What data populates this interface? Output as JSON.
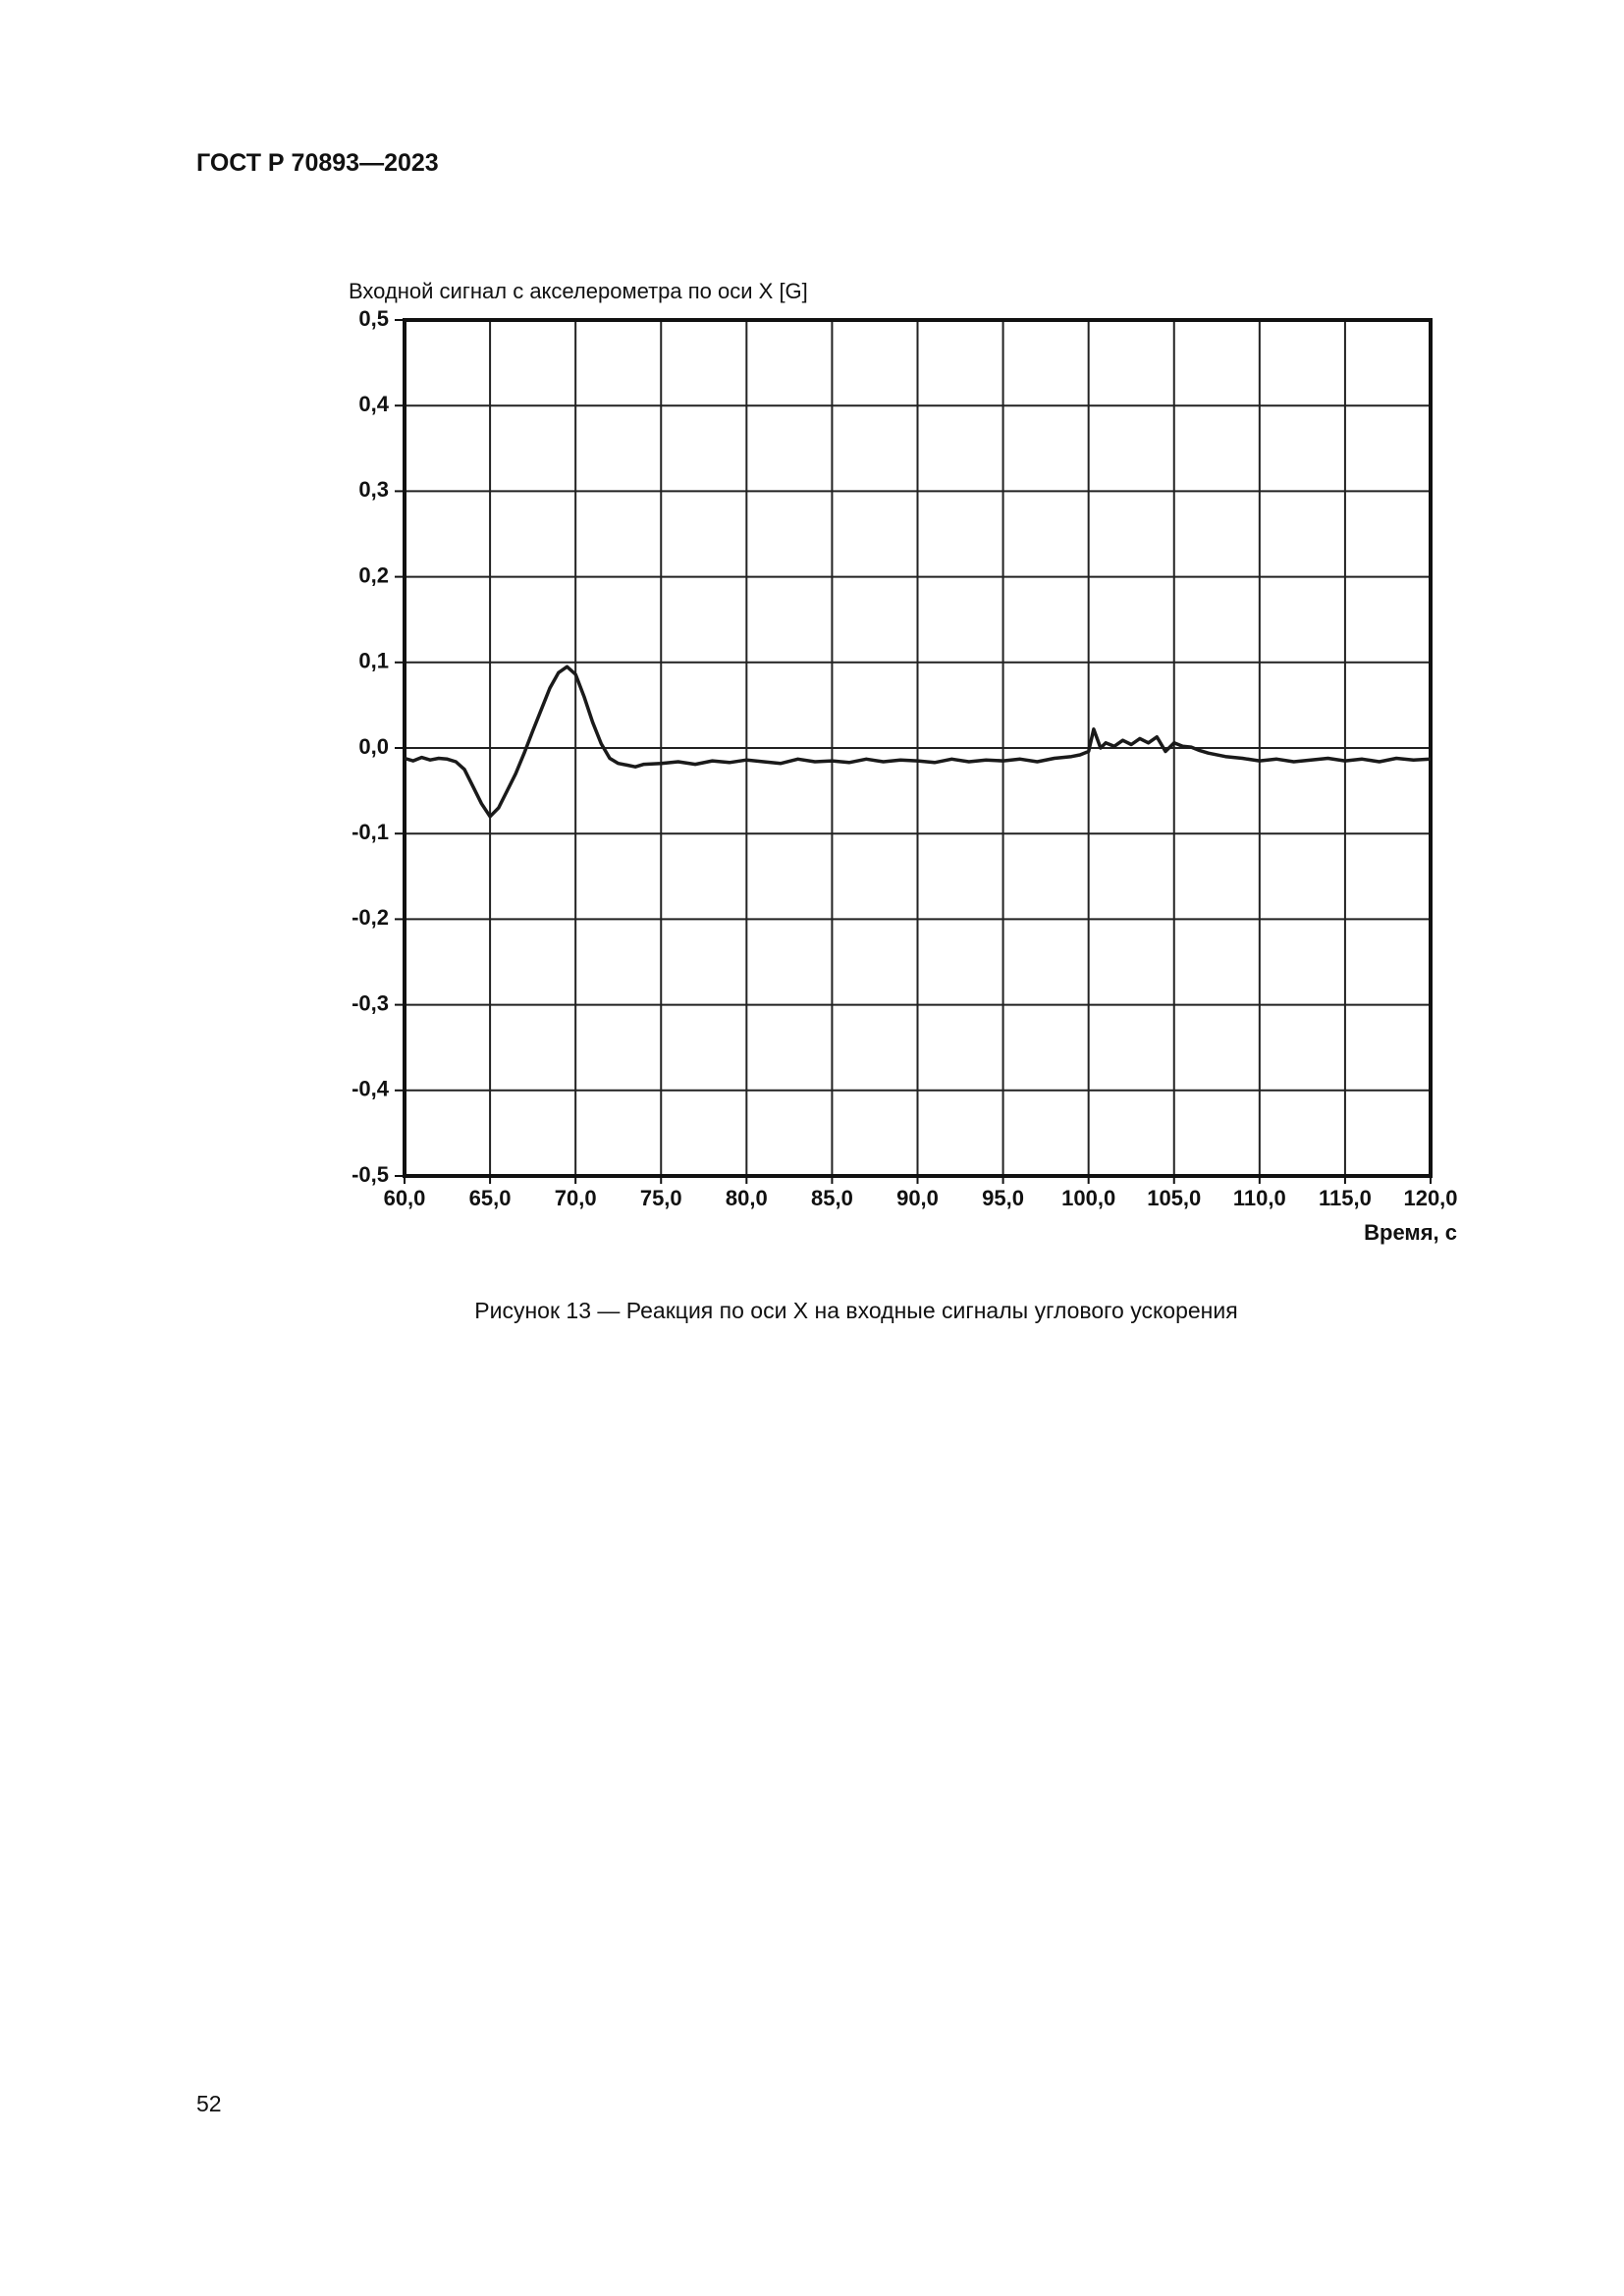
{
  "header": "ГОСТ Р 70893—2023",
  "chart_data": {
    "type": "line",
    "title": "Входной сигнал с акселерометра по оси X [G]",
    "x_label": "Время, с",
    "grid": true,
    "xlim": [
      60,
      120
    ],
    "ylim": [
      -0.5,
      0.5
    ],
    "xticks": [
      {
        "value": 60,
        "label": "60,0"
      },
      {
        "value": 65,
        "label": "65,0"
      },
      {
        "value": 70,
        "label": "70,0"
      },
      {
        "value": 75,
        "label": "75,0"
      },
      {
        "value": 80,
        "label": "80,0"
      },
      {
        "value": 85,
        "label": "85,0"
      },
      {
        "value": 90,
        "label": "90,0"
      },
      {
        "value": 95,
        "label": "95,0"
      },
      {
        "value": 100,
        "label": "100,0"
      },
      {
        "value": 105,
        "label": "105,0"
      },
      {
        "value": 110,
        "label": "110,0"
      },
      {
        "value": 115,
        "label": "115,0"
      },
      {
        "value": 120,
        "label": "120,0"
      }
    ],
    "yticks": [
      {
        "value": 0.5,
        "label": "0,5"
      },
      {
        "value": 0.4,
        "label": "0,4"
      },
      {
        "value": 0.3,
        "label": "0,3"
      },
      {
        "value": 0.2,
        "label": "0,2"
      },
      {
        "value": 0.1,
        "label": "0,1"
      },
      {
        "value": 0,
        "label": "0,0"
      },
      {
        "value": -0.1,
        "label": "-0,1"
      },
      {
        "value": -0.2,
        "label": "-0,2"
      },
      {
        "value": -0.3,
        "label": "-0,3"
      },
      {
        "value": -0.4,
        "label": "-0,4"
      },
      {
        "value": -0.5,
        "label": "-0,5"
      }
    ],
    "x": [
      60,
      60.5,
      61,
      61.5,
      62,
      62.5,
      63,
      63.5,
      64,
      64.5,
      65,
      65.5,
      66,
      66.5,
      67,
      67.5,
      68,
      68.5,
      69,
      69.5,
      70,
      70.5,
      71,
      71.5,
      72,
      72.5,
      73,
      73.5,
      74,
      75,
      76,
      77,
      78,
      79,
      80,
      81,
      82,
      83,
      84,
      85,
      86,
      87,
      88,
      89,
      90,
      91,
      92,
      93,
      94,
      95,
      96,
      97,
      98,
      99,
      99.5,
      100,
      100.3,
      100.7,
      101,
      101.5,
      102,
      102.5,
      103,
      103.5,
      104,
      104.5,
      105,
      105.5,
      106,
      106.5,
      107,
      108,
      109,
      110,
      111,
      112,
      113,
      114,
      115,
      116,
      117,
      118,
      119,
      120
    ],
    "series": [
      {
        "color": "#1a1a1a",
        "values": [
          -0.012,
          -0.015,
          -0.011,
          -0.014,
          -0.012,
          -0.013,
          -0.016,
          -0.025,
          -0.045,
          -0.065,
          -0.08,
          -0.07,
          -0.05,
          -0.03,
          -0.006,
          0.02,
          0.045,
          0.07,
          0.088,
          0.095,
          0.086,
          0.06,
          0.03,
          0.005,
          -0.012,
          -0.018,
          -0.02,
          -0.022,
          -0.019,
          -0.018,
          -0.016,
          -0.019,
          -0.015,
          -0.017,
          -0.014,
          -0.016,
          -0.018,
          -0.013,
          -0.016,
          -0.015,
          -0.017,
          -0.013,
          -0.016,
          -0.014,
          -0.015,
          -0.017,
          -0.013,
          -0.016,
          -0.014,
          -0.015,
          -0.013,
          -0.016,
          -0.012,
          -0.01,
          -0.008,
          -0.004,
          0.022,
          0.0,
          0.006,
          0.002,
          0.009,
          0.004,
          0.011,
          0.006,
          0.013,
          -0.004,
          0.006,
          0.002,
          0.001,
          -0.003,
          -0.006,
          -0.01,
          -0.012,
          -0.015,
          -0.013,
          -0.016,
          -0.014,
          -0.012,
          -0.015,
          -0.013,
          -0.016,
          -0.012,
          -0.014,
          -0.013
        ]
      }
    ]
  },
  "caption": "Рисунок 13 — Реакция по оси X на входные сигналы углового ускорения",
  "page_number": 52
}
